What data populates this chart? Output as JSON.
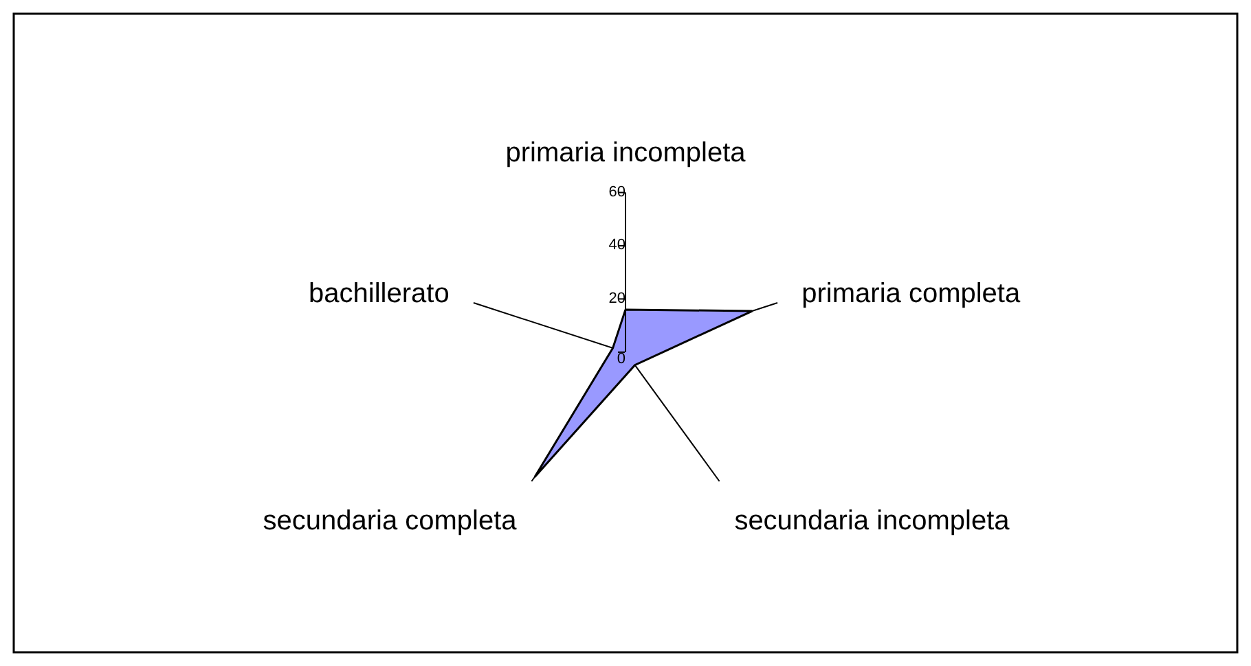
{
  "chart_data": {
    "type": "radar",
    "categories": [
      "primaria incompleta",
      "primaria completa",
      "secundaria incompleta",
      "secundaria completa",
      "bachillerato"
    ],
    "series": [
      {
        "color": "#9999ff",
        "values": [
          16,
          50,
          6,
          58,
          5
        ]
      }
    ],
    "ylim": [
      0,
      60
    ],
    "yticks": [
      0,
      20,
      40,
      60
    ],
    "grid": "x",
    "marker": "none",
    "line_style": "solid"
  }
}
